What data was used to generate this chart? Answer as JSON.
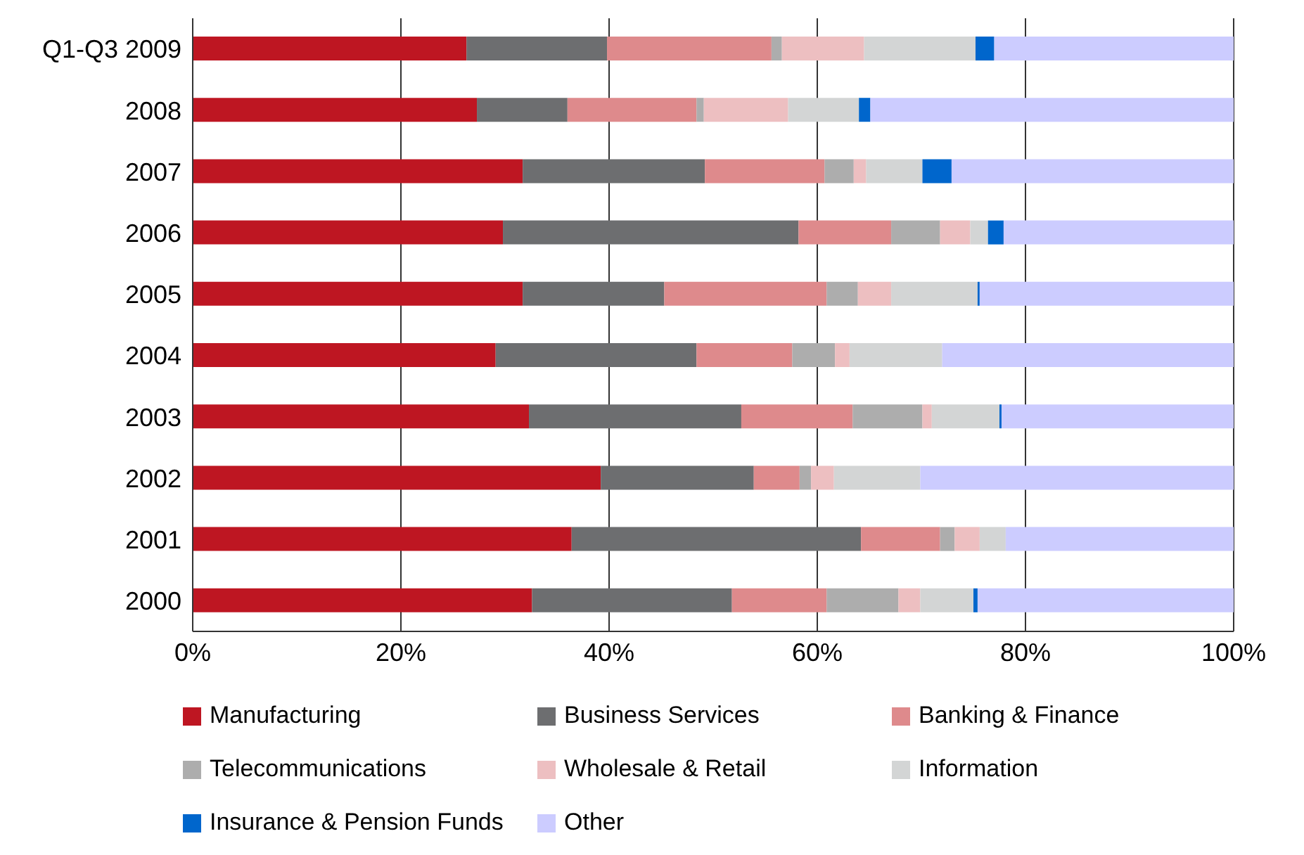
{
  "chart_data": {
    "type": "bar",
    "orientation": "horizontal",
    "stacked": true,
    "categories": [
      "Q1-Q3 2009",
      "2008",
      "2007",
      "2006",
      "2005",
      "2004",
      "2003",
      "2002",
      "2001",
      "2000"
    ],
    "series": [
      {
        "name": "Manufacturing",
        "color": "#be1622",
        "values": [
          26.3,
          27.3,
          31.7,
          29.8,
          31.7,
          29.1,
          32.3,
          39.2,
          36.4,
          32.6
        ]
      },
      {
        "name": "Business Services",
        "color": "#6d6e70",
        "values": [
          13.5,
          8.7,
          17.5,
          28.4,
          13.6,
          19.3,
          20.4,
          14.7,
          27.8,
          19.2
        ]
      },
      {
        "name": "Banking & Finance",
        "color": "#de8a8c",
        "values": [
          15.8,
          12.4,
          11.5,
          8.9,
          15.6,
          9.2,
          10.7,
          4.4,
          7.6,
          9.1
        ]
      },
      {
        "name": "Telecommunications",
        "color": "#adadad",
        "values": [
          1.0,
          0.7,
          2.8,
          4.7,
          3.0,
          4.1,
          6.7,
          1.1,
          1.4,
          6.9
        ]
      },
      {
        "name": "Wholesale & Retail",
        "color": "#edbfc1",
        "values": [
          7.9,
          8.1,
          1.2,
          2.9,
          3.2,
          1.4,
          0.9,
          2.2,
          2.4,
          2.1
        ]
      },
      {
        "name": "Information",
        "color": "#d3d5d5",
        "values": [
          10.7,
          6.8,
          5.4,
          1.7,
          8.3,
          8.9,
          6.5,
          8.3,
          2.5,
          5.1
        ]
      },
      {
        "name": "Insurance & Pension Funds",
        "color": "#0066cc",
        "values": [
          1.8,
          1.1,
          2.8,
          1.5,
          0.2,
          0,
          0.2,
          0,
          0,
          0.4
        ]
      },
      {
        "name": "Other",
        "color": "#ccccff",
        "values": [
          23.0,
          34.9,
          27.1,
          22.1,
          24.4,
          28.0,
          22.3,
          30.1,
          21.9,
          24.6
        ]
      }
    ],
    "xlim": [
      0,
      100
    ],
    "xticks": [
      {
        "value": 0,
        "label": "0%"
      },
      {
        "value": 20,
        "label": "20%"
      },
      {
        "value": 40,
        "label": "40%"
      },
      {
        "value": 60,
        "label": "60%"
      },
      {
        "value": 80,
        "label": "80%"
      },
      {
        "value": 100,
        "label": "100%"
      }
    ],
    "grid": "x",
    "legend": "bottom"
  }
}
